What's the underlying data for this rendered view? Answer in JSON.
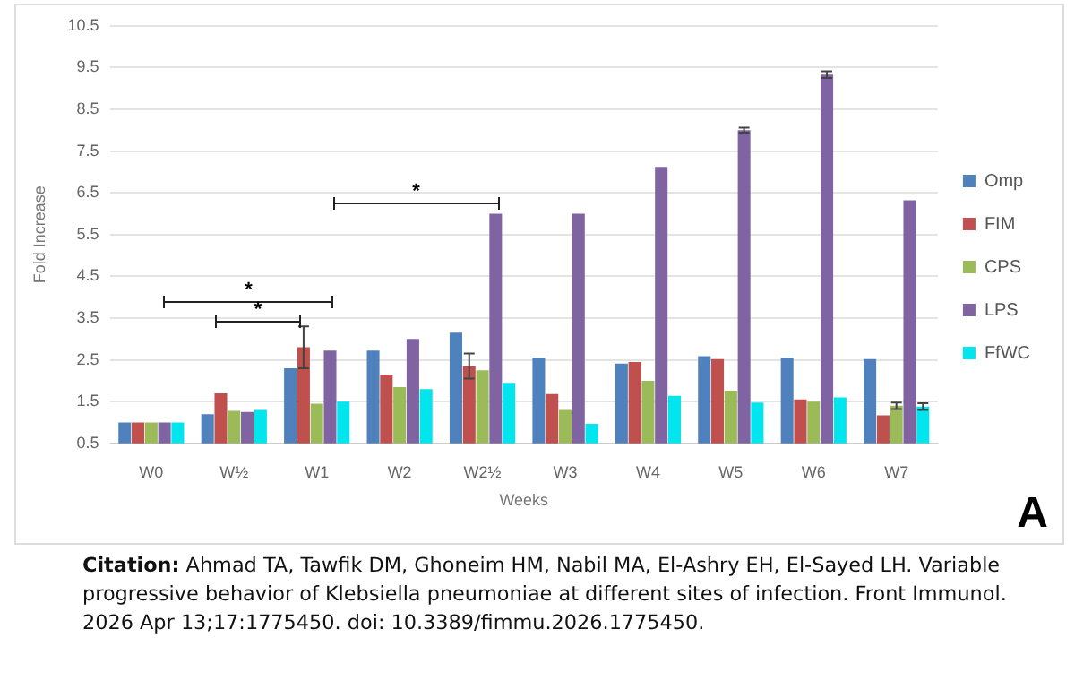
{
  "chart_data": {
    "type": "bar",
    "xlabel": "Weeks",
    "ylabel": "Fold Increase",
    "categories": [
      "W0",
      "W½",
      "W1",
      "W2",
      "W2½",
      "W3",
      "W4",
      "W5",
      "W6",
      "W7"
    ],
    "series": [
      {
        "name": "Omp",
        "color": "#4f81bd",
        "values": [
          1.0,
          1.2,
          2.3,
          2.72,
          3.15,
          2.55,
          2.41,
          2.59,
          2.55,
          2.52
        ]
      },
      {
        "name": "FIM",
        "color": "#c0504d",
        "values": [
          1.0,
          1.7,
          2.8,
          2.15,
          2.35,
          1.68,
          2.45,
          2.52,
          1.55,
          1.17
        ],
        "errors": [
          null,
          null,
          0.5,
          null,
          0.3,
          null,
          null,
          null,
          null,
          null
        ]
      },
      {
        "name": "CPS",
        "color": "#9bbb59",
        "values": [
          1.0,
          1.28,
          1.45,
          1.85,
          2.25,
          1.3,
          2.0,
          1.76,
          1.5,
          1.4
        ],
        "errors": [
          null,
          null,
          null,
          null,
          null,
          null,
          null,
          null,
          null,
          0.08
        ]
      },
      {
        "name": "LPS",
        "color": "#8064a2",
        "values": [
          1.0,
          1.25,
          2.72,
          3.0,
          6.0,
          6.0,
          7.12,
          8.0,
          9.33,
          6.32
        ],
        "errors": [
          null,
          null,
          null,
          null,
          null,
          null,
          null,
          0.06,
          0.08,
          null
        ]
      },
      {
        "name": "FfWC",
        "color": "#00e5ee",
        "values": [
          1.0,
          1.3,
          1.5,
          1.8,
          1.95,
          0.97,
          1.64,
          1.48,
          1.6,
          1.38
        ],
        "errors": [
          null,
          null,
          null,
          null,
          null,
          null,
          null,
          null,
          null,
          0.08
        ]
      }
    ],
    "ylim": [
      0.5,
      10.5
    ],
    "yticks": [
      0.5,
      1.5,
      2.5,
      3.5,
      4.5,
      5.5,
      6.5,
      7.5,
      8.5,
      9.5,
      10.5
    ],
    "grid": "y",
    "legend": "right",
    "annotations": [
      "*",
      "*",
      "*",
      "A",
      "Citation: Ahmad TA, Tawfik DM, Ghoneim HM, Nabil MA, El-Ashry EH, El-Sayed LH. Variable progressive behavior of Klebsiella pneumoniae at different sites of infection. Front Immunol. 2026 Apr 13;17:1775450. doi: 10.3389/fimmu.2026.1775450."
    ]
  }
}
